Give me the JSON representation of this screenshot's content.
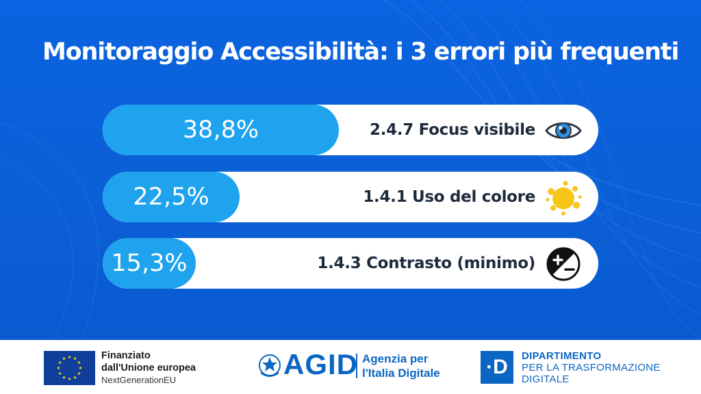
{
  "header": {
    "title": "Monitoraggio Accessibilità: i 3 errori più frequenti"
  },
  "chart_data": {
    "type": "bar",
    "orientation": "horizontal",
    "categories": [
      "2.4.7 Focus visibile",
      "1.4.1 Uso del colore",
      "1.4.3 Contrasto (minimo)"
    ],
    "values": [
      38.8,
      22.5,
      15.3
    ],
    "value_labels": [
      "38,8%",
      "22,5%",
      "15,3%"
    ],
    "icons": [
      "eye-icon",
      "color-splash-icon",
      "contrast-icon"
    ],
    "title": "Monitoraggio Accessibilità: i 3 errori più frequenti",
    "xlabel": "",
    "ylabel": "",
    "unit": "%",
    "grid": false,
    "colors": {
      "fill": "#1fa3ee",
      "track": "#ffffff",
      "background": "#0b5fd6"
    }
  },
  "footer": {
    "eu": {
      "line1": "Finanziato",
      "line2": "dall'Unione europea",
      "line3": "NextGenerationEU"
    },
    "agid": {
      "logo": "AGID",
      "line1": "Agenzia per",
      "line2": "l'Italia Digitale"
    },
    "dtd": {
      "mark": "·D",
      "line1": "DIPARTIMENTO",
      "line2": "PER LA TRASFORMAZIONE",
      "line3": "DIGITALE"
    }
  }
}
